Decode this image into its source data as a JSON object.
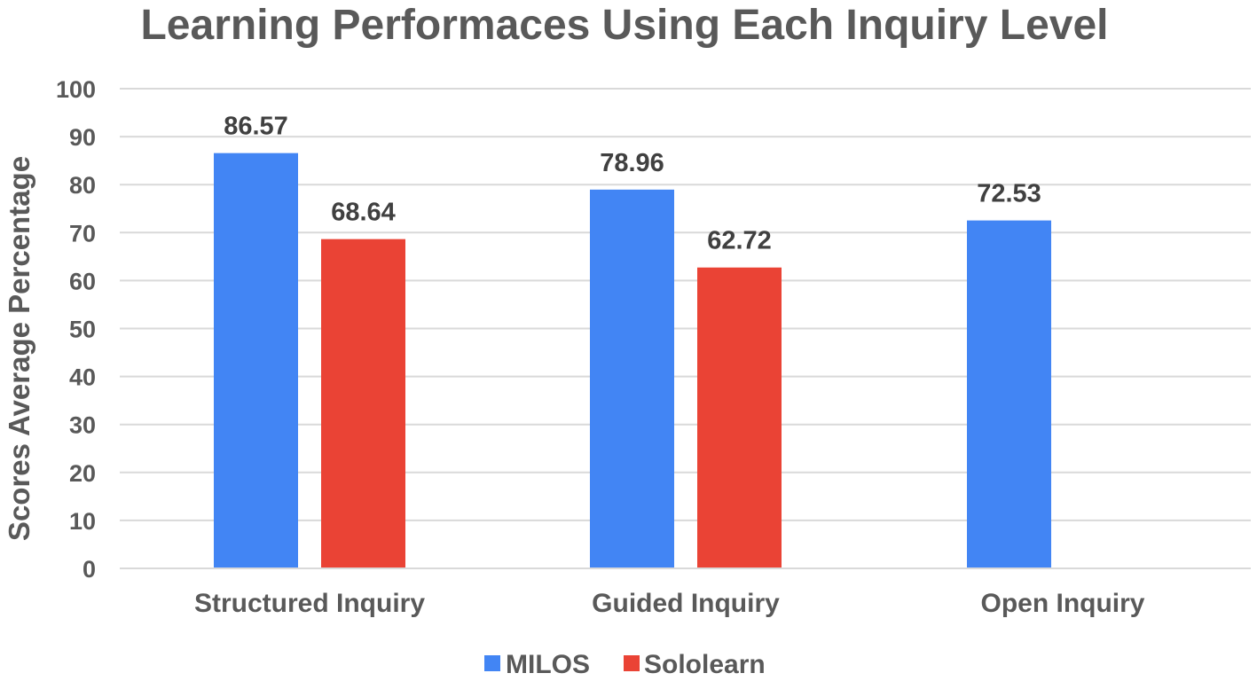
{
  "chart_data": {
    "type": "bar",
    "title": "Learning Performaces Using Each Inquiry Level",
    "xlabel": "",
    "ylabel": "Scores Average Percentage",
    "ylim": [
      0,
      100
    ],
    "yticks": [
      0,
      10,
      20,
      30,
      40,
      50,
      60,
      70,
      80,
      90,
      100
    ],
    "ytick_labels": [
      "0",
      "10",
      "20",
      "30",
      "40",
      "50",
      "60",
      "70",
      "80",
      "90",
      "100"
    ],
    "categories": [
      "Structured Inquiry",
      "Guided Inquiry",
      "Open Inquiry"
    ],
    "series": [
      {
        "name": "MILOS",
        "color": "#4285f4",
        "values": [
          86.57,
          78.96,
          72.53
        ],
        "labels": [
          "86.57",
          "78.96",
          "72.53"
        ]
      },
      {
        "name": "Sololearn",
        "color": "#ea4335",
        "values": [
          68.64,
          62.72,
          null
        ],
        "labels": [
          "68.64",
          "62.72",
          ""
        ]
      }
    ],
    "grid": true,
    "legend": "bottom"
  }
}
